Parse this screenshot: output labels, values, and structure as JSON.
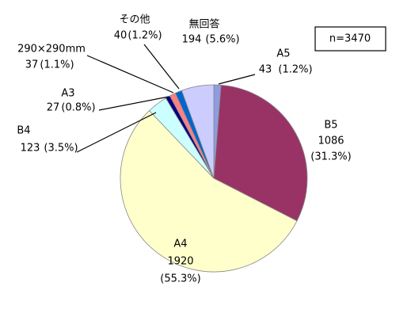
{
  "chart_data": {
    "type": "pie",
    "categories": [
      "A5",
      "B5",
      "A4",
      "B4",
      "A3",
      "290×290mm",
      "その他",
      "無回答"
    ],
    "values": [
      43,
      1086,
      1920,
      123,
      27,
      37,
      40,
      194
    ],
    "percents": [
      1.2,
      31.3,
      55.3,
      3.5,
      0.8,
      1.1,
      1.2,
      5.6
    ],
    "percent_labels": [
      "(1.2%)",
      "(31.3%)",
      "(55.3%)",
      "(3.5%)",
      "(0.8%)",
      "(1.1%)",
      "(1.2%)",
      "(5.6%)"
    ],
    "colors": [
      "#8e9ce0",
      "#993366",
      "#ffffcc",
      "#ccffff",
      "#000080",
      "#ff8080",
      "#0066cc",
      "#ccccff"
    ],
    "annotation": "n=3470"
  }
}
